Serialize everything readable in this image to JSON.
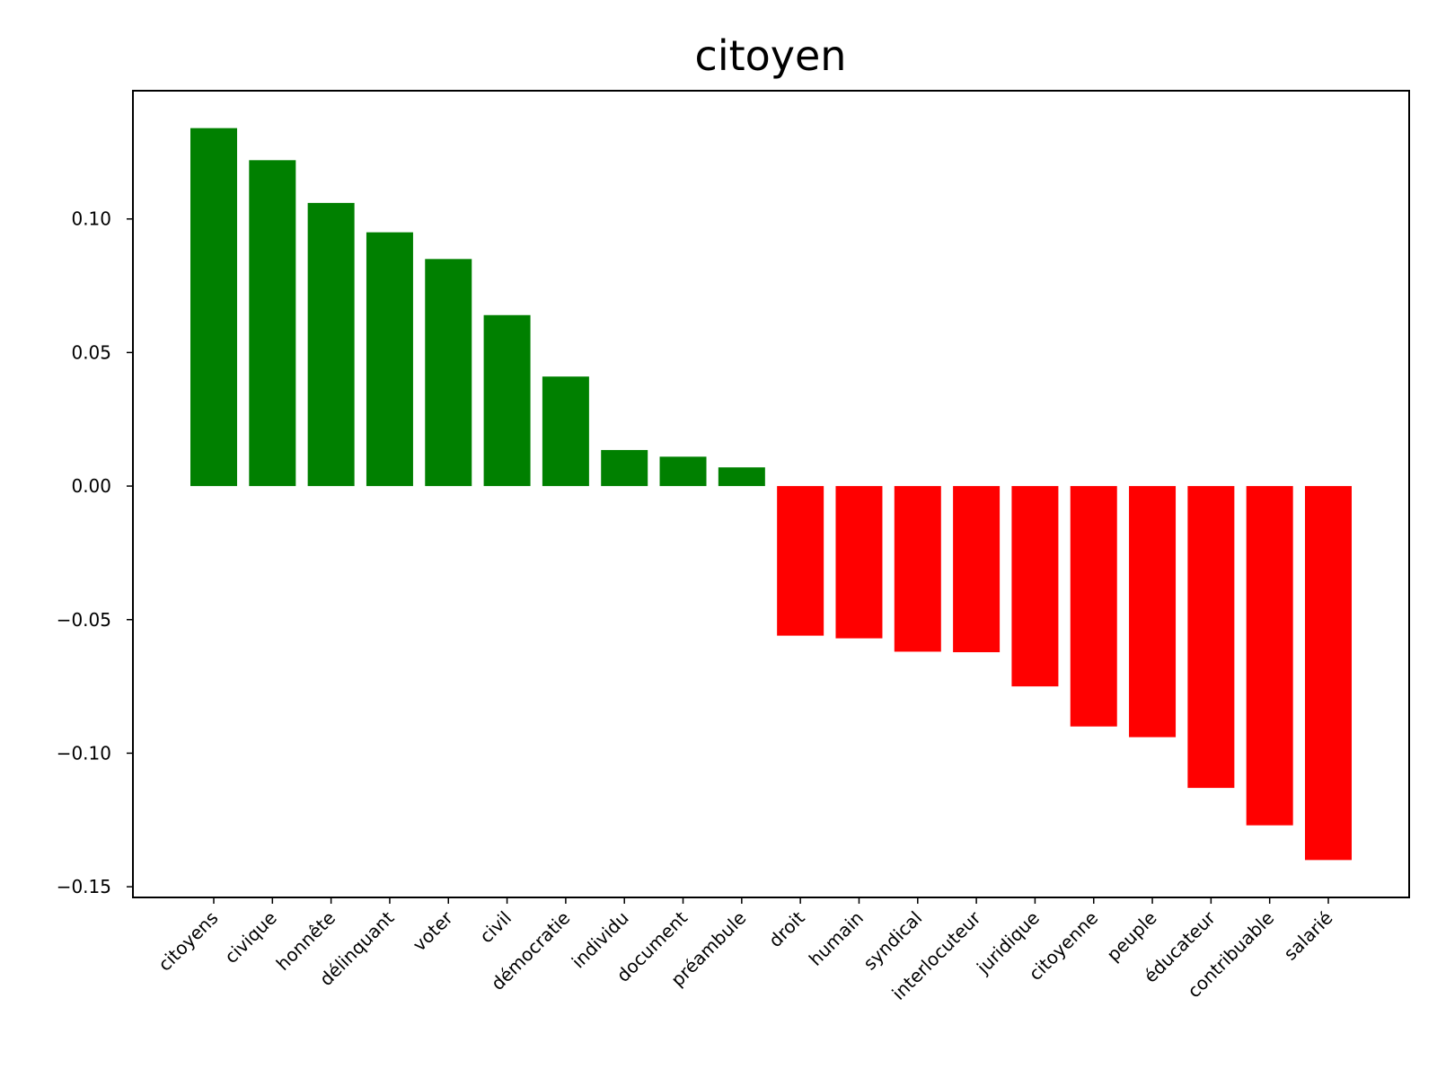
{
  "chart_data": {
    "type": "bar",
    "title": "citoyen",
    "xlabel": "",
    "ylabel": "",
    "categories": [
      "citoyens",
      "civique",
      "honnête",
      "délinquant",
      "voter",
      "civil",
      "démocratie",
      "individu",
      "document",
      "préambule",
      "droit",
      "humain",
      "syndical",
      "interlocuteur",
      "juridique",
      "citoyenne",
      "peuple",
      "éducateur",
      "contribuable",
      "salarié"
    ],
    "values": [
      0.134,
      0.122,
      0.106,
      0.095,
      0.085,
      0.064,
      0.041,
      0.0135,
      0.011,
      0.007,
      -0.056,
      -0.057,
      -0.062,
      -0.0622,
      -0.075,
      -0.09,
      -0.094,
      -0.113,
      -0.127,
      -0.14
    ],
    "ylim": [
      -0.154,
      0.148
    ],
    "yticks": [
      -0.15,
      -0.1,
      -0.05,
      0.0,
      0.05,
      0.1
    ],
    "ytick_labels": [
      "−0.15",
      "−0.10",
      "−0.05",
      "0.00",
      "0.05",
      "0.10"
    ],
    "colors": {
      "positive": "#008000",
      "negative": "#ff0000"
    },
    "grid": false,
    "legend": "none"
  }
}
